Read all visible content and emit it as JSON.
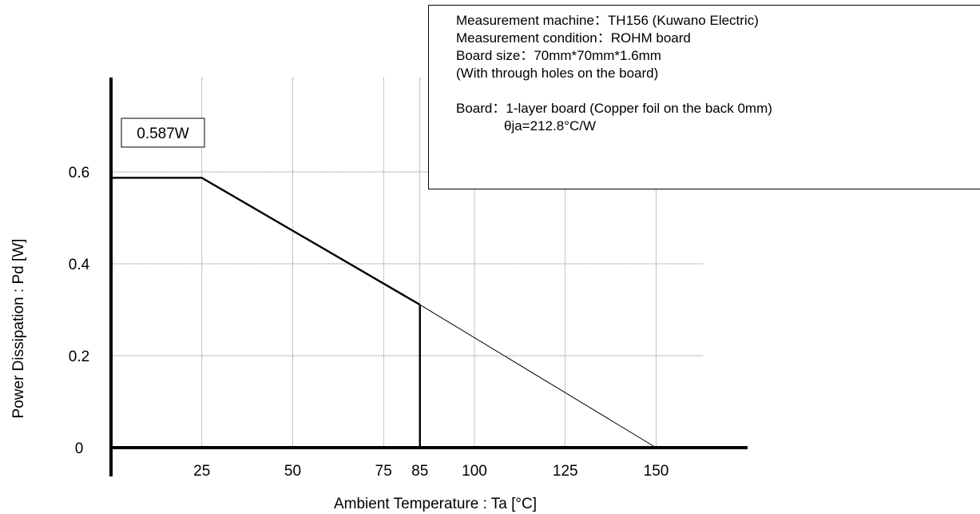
{
  "chart_data": {
    "type": "line",
    "xlabel": "Ambient Temperature : Ta [°C]",
    "ylabel": "Power Dissipation : Pd [W]",
    "x_ticks": [
      25,
      50,
      75,
      85,
      100,
      125,
      150
    ],
    "y_ticks": [
      0,
      0.2,
      0.4,
      0.6
    ],
    "x_tick_labels": [
      "25",
      "50",
      "75",
      "85",
      "100",
      "125",
      "150"
    ],
    "y_tick_labels": [
      "0",
      "0.2",
      "0.4",
      "0.6"
    ],
    "xlim": [
      0,
      175
    ],
    "ylim": [
      0,
      0.8
    ],
    "grid": true,
    "series": [
      {
        "style": "solid-thick",
        "x": [
          0,
          25,
          85
        ],
        "y": [
          0.587,
          0.587,
          0.311
        ]
      },
      {
        "style": "solid-thin",
        "x": [
          85,
          150
        ],
        "y": [
          0.311,
          0
        ]
      }
    ],
    "drop_line": {
      "x": 85,
      "y_from": 0,
      "y_to": 0.311
    },
    "annotation": {
      "text": "0.587W",
      "value": 0.587
    }
  },
  "info": {
    "line1": "Measurement machine：TH156 (Kuwano Electric)",
    "line2": "Measurement condition：ROHM board",
    "line3": "Board size：70mm*70mm*1.6mm",
    "line4": "(With through holes on the board)",
    "line5": "Board：1-layer board (Copper foil on the back 0mm)",
    "line6": "θja=212.8°C/W"
  }
}
